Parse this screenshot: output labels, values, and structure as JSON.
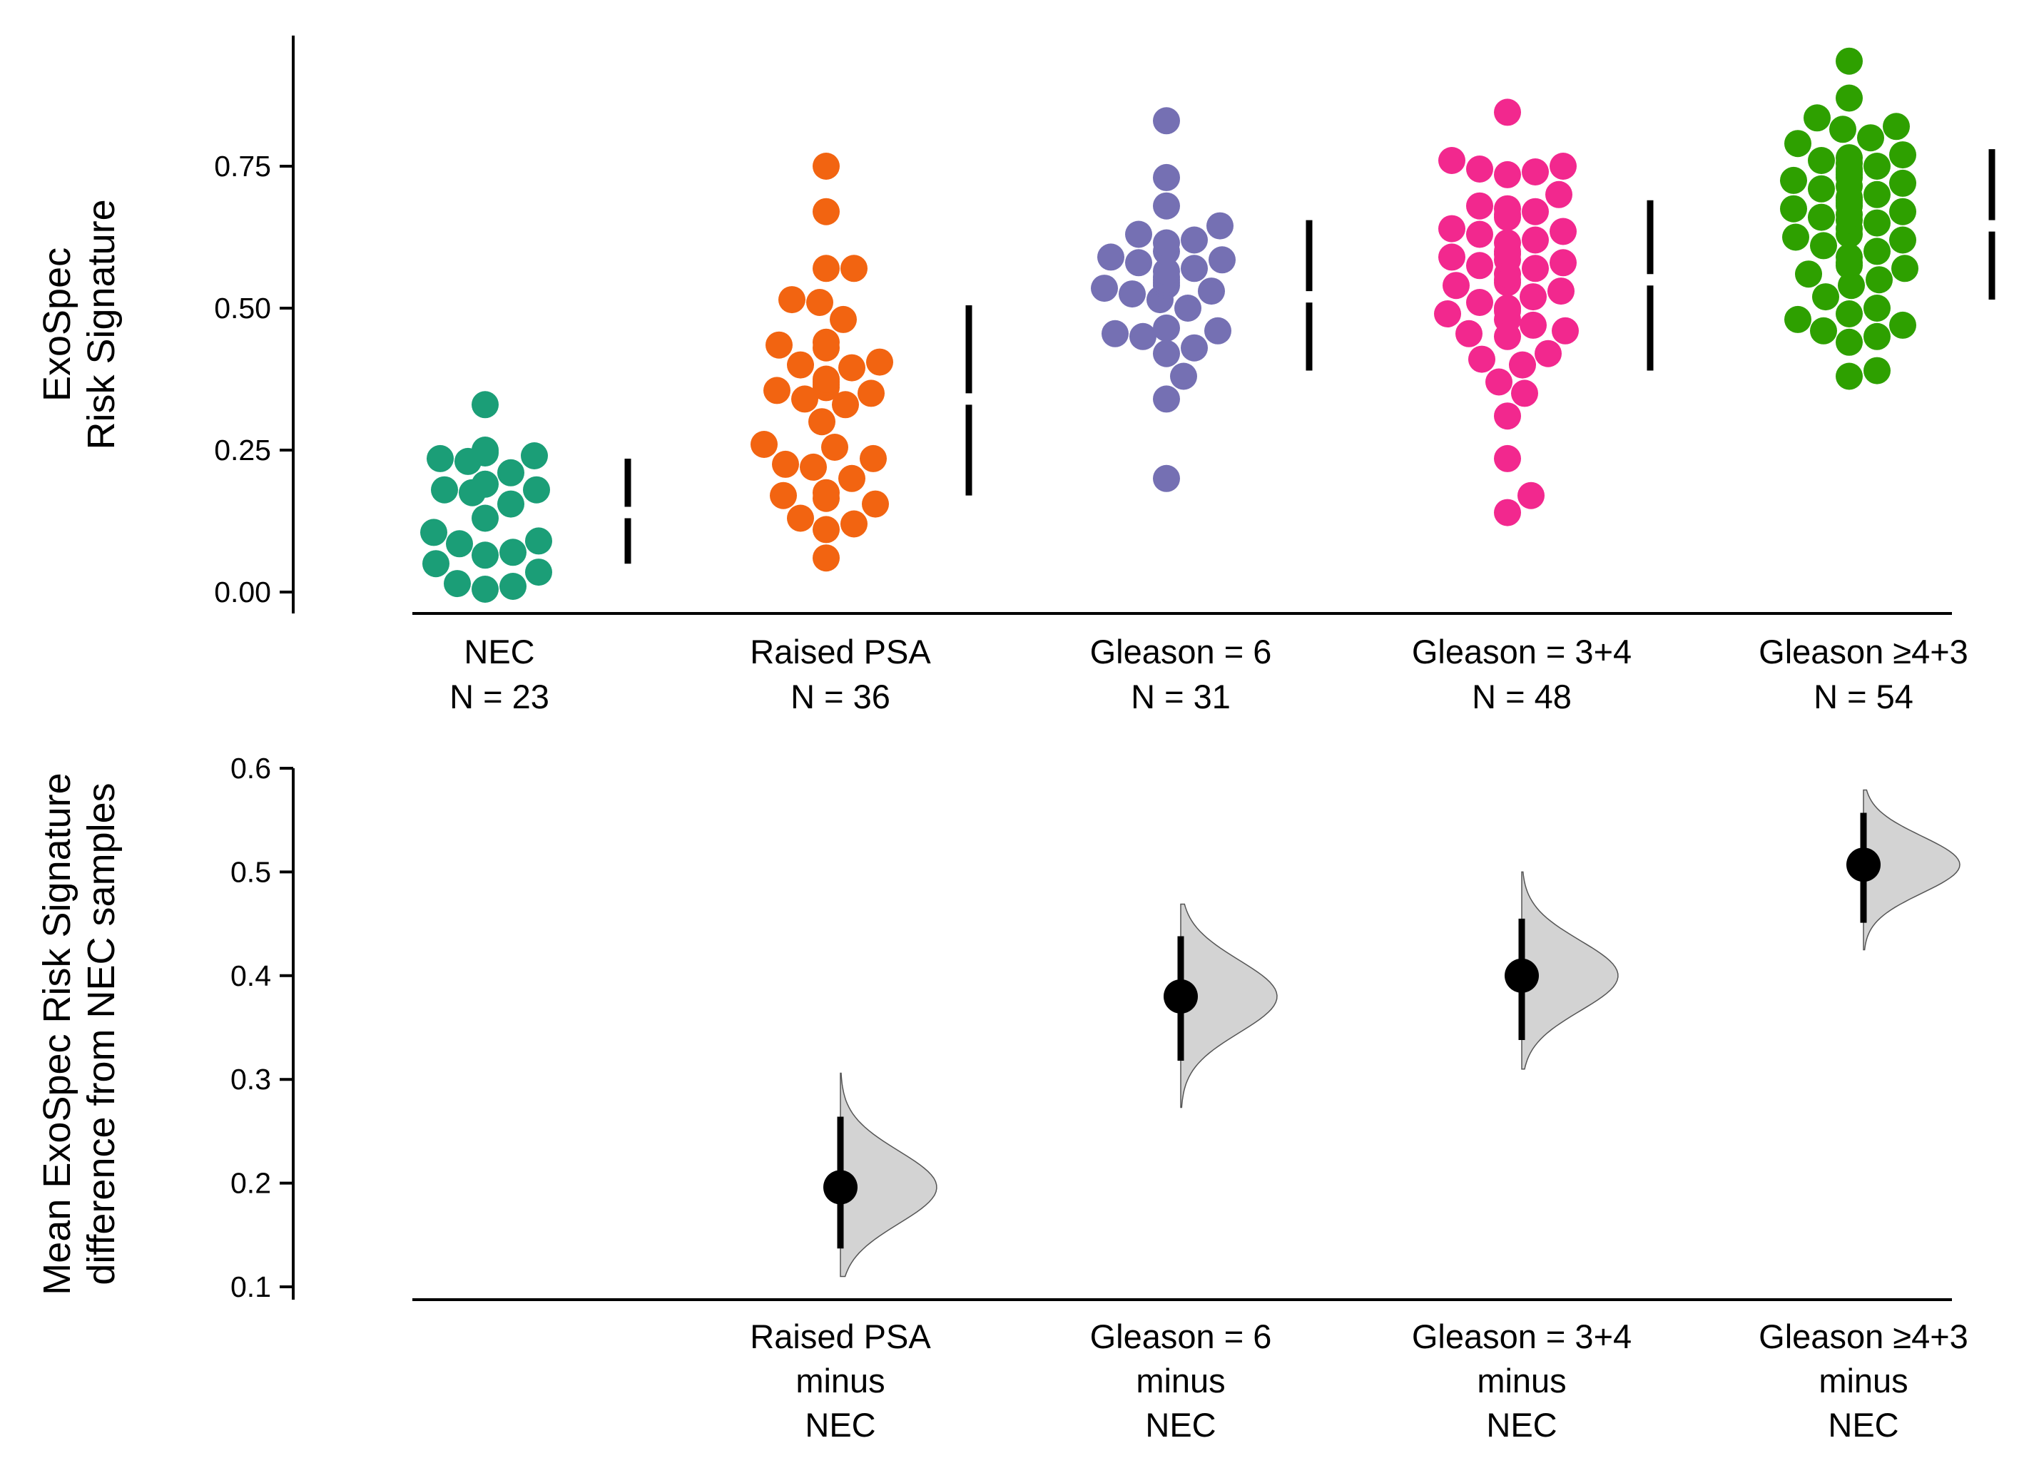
{
  "chart_data": [
    {
      "type": "scatter",
      "subtype": "swarm",
      "ylabel_lines": [
        "ExoSpec",
        "Risk Signature"
      ],
      "ylim": [
        0,
        0.98
      ],
      "yticks": [
        0.0,
        0.25,
        0.5,
        0.75
      ],
      "ytick_labels": [
        "0.00",
        "0.25",
        "0.50",
        "0.75"
      ],
      "grid": false,
      "categories": [
        {
          "name": "NEC",
          "n_label": "N = 23",
          "color": "#1B9E77",
          "gap": {
            "mean": 0.14,
            "sd_low": 0.05,
            "sd_high": 0.235
          },
          "values": [
            0.33,
            0.25,
            0.245,
            0.24,
            0.235,
            0.23,
            0.21,
            0.19,
            0.18,
            0.18,
            0.175,
            0.155,
            0.13,
            0.105,
            0.09,
            0.085,
            0.07,
            0.065,
            0.05,
            0.035,
            0.015,
            0.01,
            0.005
          ]
        },
        {
          "name": "Raised PSA",
          "n_label": "N = 36",
          "color": "#F26411",
          "gap": {
            "mean": 0.34,
            "sd_low": 0.17,
            "sd_high": 0.505
          },
          "values": [
            0.75,
            0.67,
            0.57,
            0.57,
            0.515,
            0.51,
            0.48,
            0.44,
            0.435,
            0.43,
            0.405,
            0.4,
            0.395,
            0.375,
            0.37,
            0.365,
            0.36,
            0.355,
            0.35,
            0.34,
            0.33,
            0.3,
            0.26,
            0.255,
            0.235,
            0.225,
            0.22,
            0.2,
            0.175,
            0.17,
            0.165,
            0.155,
            0.13,
            0.12,
            0.11,
            0.06
          ]
        },
        {
          "name": "Gleason = 6",
          "n_label": "N = 31",
          "color": "#7570B3",
          "gap": {
            "mean": 0.52,
            "sd_low": 0.39,
            "sd_high": 0.655
          },
          "values": [
            0.83,
            0.73,
            0.68,
            0.645,
            0.63,
            0.62,
            0.615,
            0.6,
            0.59,
            0.585,
            0.58,
            0.57,
            0.565,
            0.555,
            0.55,
            0.545,
            0.54,
            0.535,
            0.53,
            0.525,
            0.515,
            0.5,
            0.465,
            0.46,
            0.455,
            0.45,
            0.43,
            0.42,
            0.38,
            0.34,
            0.2
          ]
        },
        {
          "name": "Gleason = 3+4",
          "n_label": "N = 48",
          "color": "#F2288E",
          "gap": {
            "mean": 0.55,
            "sd_low": 0.39,
            "sd_high": 0.69
          },
          "values": [
            0.845,
            0.76,
            0.75,
            0.745,
            0.74,
            0.735,
            0.7,
            0.68,
            0.675,
            0.67,
            0.665,
            0.66,
            0.64,
            0.635,
            0.63,
            0.62,
            0.615,
            0.6,
            0.595,
            0.59,
            0.585,
            0.58,
            0.575,
            0.57,
            0.56,
            0.55,
            0.545,
            0.54,
            0.53,
            0.52,
            0.51,
            0.5,
            0.495,
            0.49,
            0.48,
            0.47,
            0.46,
            0.455,
            0.45,
            0.42,
            0.41,
            0.4,
            0.37,
            0.35,
            0.31,
            0.235,
            0.17,
            0.14
          ]
        },
        {
          "name": "Gleason ≥4+3",
          "n_label": "N = 54",
          "color": "#2EA000",
          "gap": {
            "mean": 0.645,
            "sd_low": 0.515,
            "sd_high": 0.78
          },
          "values": [
            0.935,
            0.87,
            0.835,
            0.82,
            0.815,
            0.8,
            0.79,
            0.77,
            0.765,
            0.76,
            0.755,
            0.75,
            0.745,
            0.74,
            0.735,
            0.73,
            0.725,
            0.72,
            0.715,
            0.71,
            0.7,
            0.695,
            0.69,
            0.685,
            0.68,
            0.675,
            0.67,
            0.665,
            0.66,
            0.655,
            0.65,
            0.64,
            0.63,
            0.625,
            0.62,
            0.61,
            0.6,
            0.59,
            0.58,
            0.575,
            0.57,
            0.56,
            0.55,
            0.54,
            0.52,
            0.5,
            0.49,
            0.48,
            0.47,
            0.46,
            0.45,
            0.44,
            0.39,
            0.38
          ]
        }
      ]
    },
    {
      "type": "scatter",
      "subtype": "estimation",
      "ylabel_lines": [
        "Mean ExoSpec Risk Signature",
        "difference from NEC samples"
      ],
      "ylim": [
        0.09,
        0.6
      ],
      "yticks": [
        0.1,
        0.2,
        0.3,
        0.4,
        0.5,
        0.6
      ],
      "ytick_labels": [
        "0.1",
        "0.2",
        "0.3",
        "0.4",
        "0.5",
        "0.6"
      ],
      "grid": false,
      "dot_color": "#000000",
      "violin_color": "#D3D3D3",
      "comparisons": [
        {
          "label_lines": [
            "Raised PSA",
            "minus",
            "NEC"
          ],
          "mean": 0.196,
          "ci": [
            0.137,
            0.264
          ],
          "dist_range": [
            0.11,
            0.306
          ]
        },
        {
          "label_lines": [
            "Gleason = 6",
            "minus",
            "NEC"
          ],
          "mean": 0.38,
          "ci": [
            0.318,
            0.438
          ],
          "dist_range": [
            0.273,
            0.469
          ]
        },
        {
          "label_lines": [
            "Gleason = 3+4",
            "minus",
            "NEC"
          ],
          "mean": 0.4,
          "ci": [
            0.338,
            0.455
          ],
          "dist_range": [
            0.31,
            0.5
          ]
        },
        {
          "label_lines": [
            "Gleason ≥4+3",
            "minus",
            "NEC"
          ],
          "mean": 0.507,
          "ci": [
            0.451,
            0.557
          ],
          "dist_range": [
            0.425,
            0.579
          ]
        }
      ]
    }
  ]
}
